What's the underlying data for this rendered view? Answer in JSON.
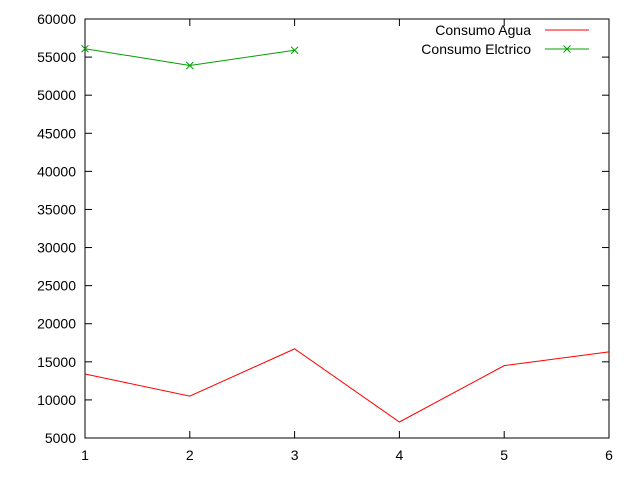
{
  "chart_data": {
    "type": "line",
    "xlim": [
      1,
      6
    ],
    "ylim": [
      5000,
      60000
    ],
    "x_ticks": [
      1,
      2,
      3,
      4,
      5,
      6
    ],
    "y_ticks": [
      5000,
      10000,
      15000,
      20000,
      25000,
      30000,
      35000,
      40000,
      45000,
      50000,
      55000,
      60000
    ],
    "grid": false,
    "legend_position": "top-right",
    "series": [
      {
        "name": "Consumo Agua",
        "color": "#ff0000",
        "marker": "none",
        "x": [
          1,
          2,
          3,
          4,
          5,
          6
        ],
        "y": [
          13400,
          10500,
          16700,
          7100,
          14500,
          16300
        ]
      },
      {
        "name": "Consumo Elctrico",
        "color": "#00a000",
        "marker": "x",
        "x": [
          1,
          2,
          3
        ],
        "y": [
          56100,
          53900,
          55900
        ]
      }
    ]
  }
}
